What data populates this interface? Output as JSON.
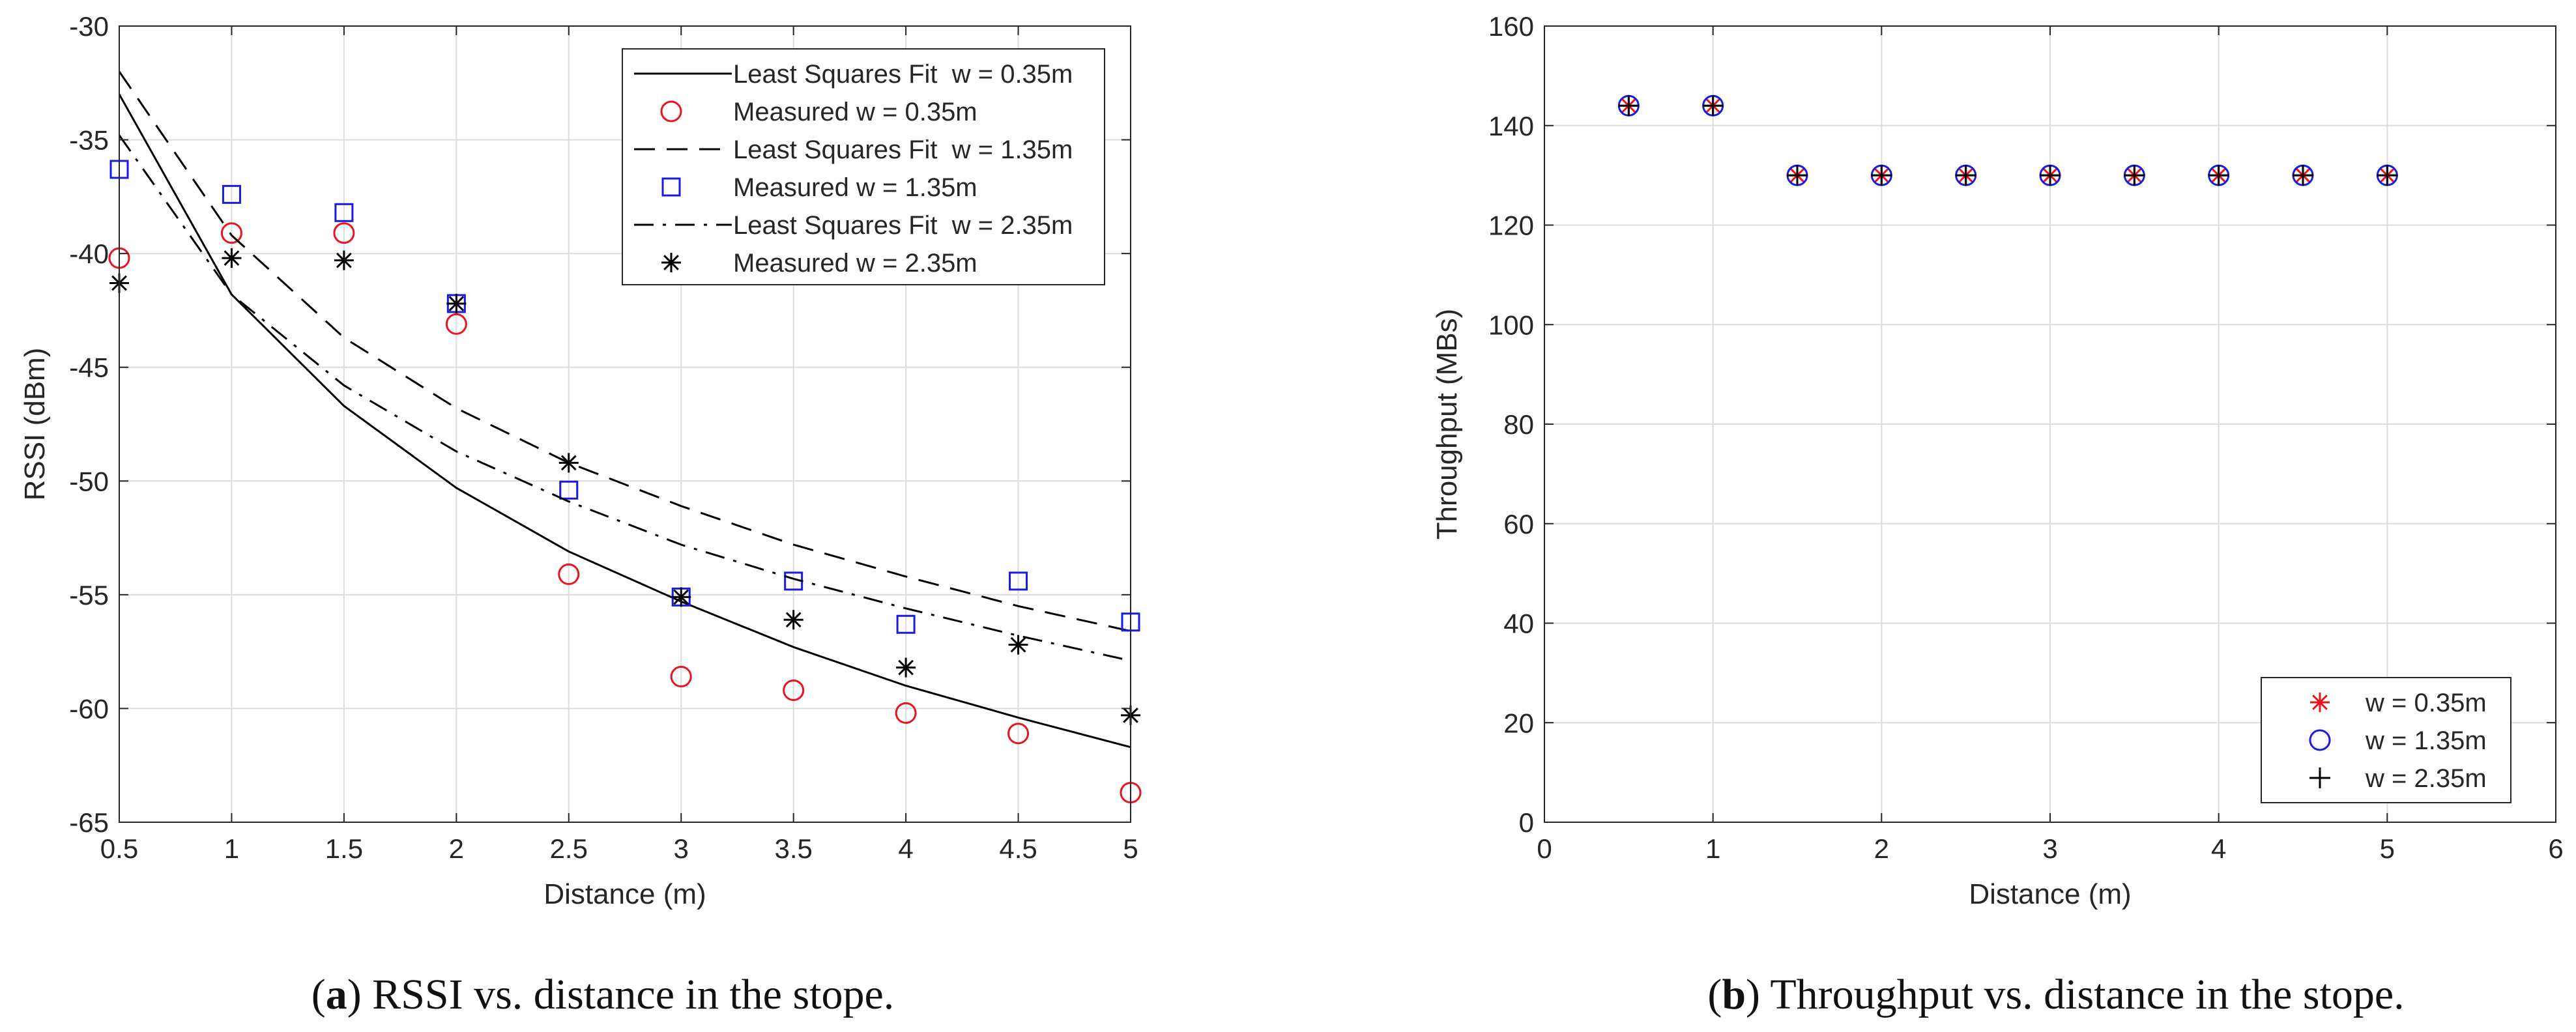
{
  "chart_data": [
    {
      "type": "line",
      "panel": "a",
      "xlabel": "Distance (m)",
      "ylabel": "RSSI (dBm)",
      "xlim": [
        0.5,
        5
      ],
      "ylim": [
        -65,
        -30
      ],
      "xticks": [
        0.5,
        1,
        1.5,
        2,
        2.5,
        3,
        3.5,
        4,
        4.5,
        5
      ],
      "xtick_labels": [
        "0.5",
        "1",
        "1.5",
        "2",
        "2.5",
        "3",
        "3.5",
        "4",
        "4.5",
        "5"
      ],
      "yticks": [
        -65,
        -60,
        -55,
        -50,
        -45,
        -40,
        -35,
        -30
      ],
      "ytick_labels": [
        "-65",
        "-60",
        "-55",
        "-50",
        "-45",
        "-40",
        "-35",
        "-30"
      ],
      "grid": true,
      "legend_position": "top-right",
      "x": [
        0.5,
        1,
        1.5,
        2,
        2.5,
        3,
        3.5,
        4,
        4.5,
        5
      ],
      "series": [
        {
          "name": "Least Squares Fit  w = 0.35m",
          "kind": "line",
          "dash": "solid",
          "color": "#000000",
          "values": [
            -33.0,
            -41.8,
            -46.7,
            -50.3,
            -53.1,
            -55.3,
            -57.3,
            -59.0,
            -60.4,
            -61.7
          ]
        },
        {
          "name": "Measured w = 0.35m",
          "kind": "marker",
          "marker": "circle",
          "color": "#e8141e",
          "values": [
            -40.2,
            -39.1,
            -39.1,
            -43.1,
            -54.1,
            -58.6,
            -59.2,
            -60.2,
            -61.1,
            -63.7
          ]
        },
        {
          "name": "Least Squares Fit  w = 1.35m",
          "kind": "line",
          "dash": "dashed",
          "color": "#000000",
          "values": [
            -32.0,
            -39.2,
            -43.7,
            -46.8,
            -49.2,
            -51.1,
            -52.8,
            -54.2,
            -55.5,
            -56.6
          ]
        },
        {
          "name": "Measured w = 1.35m",
          "kind": "marker",
          "marker": "square",
          "color": "#1a1ae0",
          "values": [
            -36.3,
            -37.4,
            -38.2,
            -42.2,
            -50.4,
            -55.1,
            -54.4,
            -56.3,
            -54.4,
            -56.2
          ]
        },
        {
          "name": "Least Squares Fit  w = 2.35m",
          "kind": "line",
          "dash": "dashdot",
          "color": "#000000",
          "values": [
            -34.8,
            -41.8,
            -45.8,
            -48.7,
            -50.9,
            -52.8,
            -54.3,
            -55.6,
            -56.8,
            -57.9
          ]
        },
        {
          "name": "Measured w = 2.35m",
          "kind": "marker",
          "marker": "asterisk",
          "color": "#000000",
          "values": [
            -41.3,
            -40.2,
            -40.3,
            -42.2,
            -49.2,
            -55.1,
            -56.1,
            -58.2,
            -57.2,
            -60.3
          ]
        }
      ],
      "caption_label": "a",
      "caption_text": "RSSI vs. distance in the stope."
    },
    {
      "type": "scatter",
      "panel": "b",
      "xlabel": "Distance (m)",
      "ylabel": "Throughput (MBs)",
      "xlim": [
        0,
        6
      ],
      "ylim": [
        0,
        160
      ],
      "xticks": [
        0,
        1,
        2,
        3,
        4,
        5,
        6
      ],
      "xtick_labels": [
        "0",
        "1",
        "2",
        "3",
        "4",
        "5",
        "6"
      ],
      "yticks": [
        0,
        20,
        40,
        60,
        80,
        100,
        120,
        140,
        160
      ],
      "ytick_labels": [
        "0",
        "20",
        "40",
        "60",
        "80",
        "100",
        "120",
        "140",
        "160"
      ],
      "grid": true,
      "legend_position": "bottom-right",
      "x": [
        0.5,
        1,
        1.5,
        2,
        2.5,
        3,
        3.5,
        4,
        4.5,
        5
      ],
      "series": [
        {
          "name": "w = 0.35m",
          "marker": "asterisk",
          "color": "#e8141e",
          "values": [
            144,
            144,
            130,
            130,
            130,
            130,
            130,
            130,
            130,
            130
          ]
        },
        {
          "name": "w = 1.35m",
          "marker": "circle",
          "color": "#1a1ae0",
          "values": [
            144,
            144,
            130,
            130,
            130,
            130,
            130,
            130,
            130,
            130
          ]
        },
        {
          "name": "w = 2.35m",
          "marker": "plus",
          "color": "#000000",
          "values": [
            144,
            144,
            130,
            130,
            130,
            130,
            130,
            130,
            130,
            130
          ]
        }
      ],
      "caption_label": "b",
      "caption_text": "Throughput vs. distance in the stope."
    }
  ]
}
